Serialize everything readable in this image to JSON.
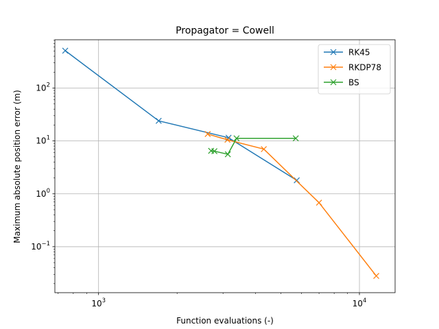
{
  "chart_data": {
    "type": "line",
    "title": "Propagator = Cowell",
    "xlabel": "Function evaluations (-)",
    "ylabel": "Maximum absolute position error (m)",
    "xscale": "log",
    "yscale": "log",
    "xlim": [
      680,
      13700
    ],
    "ylim": [
      0.0135,
      820
    ],
    "grid": true,
    "legend_position": "top-right",
    "x_ticks": [
      {
        "value": 1000,
        "base": "10",
        "exp": "3"
      },
      {
        "value": 10000,
        "base": "10",
        "exp": "4"
      }
    ],
    "y_ticks": [
      {
        "value": 0.1,
        "base": "10",
        "exp": "−1"
      },
      {
        "value": 1,
        "base": "10",
        "exp": "0"
      },
      {
        "value": 10,
        "base": "10",
        "exp": "1"
      },
      {
        "value": 100,
        "base": "10",
        "exp": "2"
      }
    ],
    "series": [
      {
        "name": "RK45",
        "color": "#1f77b4",
        "marker": "x",
        "points": [
          [
            745,
            510
          ],
          [
            1700,
            24
          ],
          [
            3150,
            11.5
          ],
          [
            5750,
            1.8
          ]
        ]
      },
      {
        "name": "RKDP78",
        "color": "#ff7f0e",
        "marker": "x",
        "points": [
          [
            2620,
            13.5
          ],
          [
            3120,
            10.5
          ],
          [
            4300,
            7.0
          ],
          [
            7000,
            0.68
          ],
          [
            11600,
            0.028
          ]
        ]
      },
      {
        "name": "BS",
        "color": "#2ca02c",
        "marker": "x",
        "points": [
          [
            2700,
            6.5
          ],
          [
            2780,
            6.4
          ],
          [
            3130,
            5.6
          ],
          [
            3380,
            11.2
          ],
          [
            5700,
            11.2
          ]
        ]
      }
    ]
  }
}
